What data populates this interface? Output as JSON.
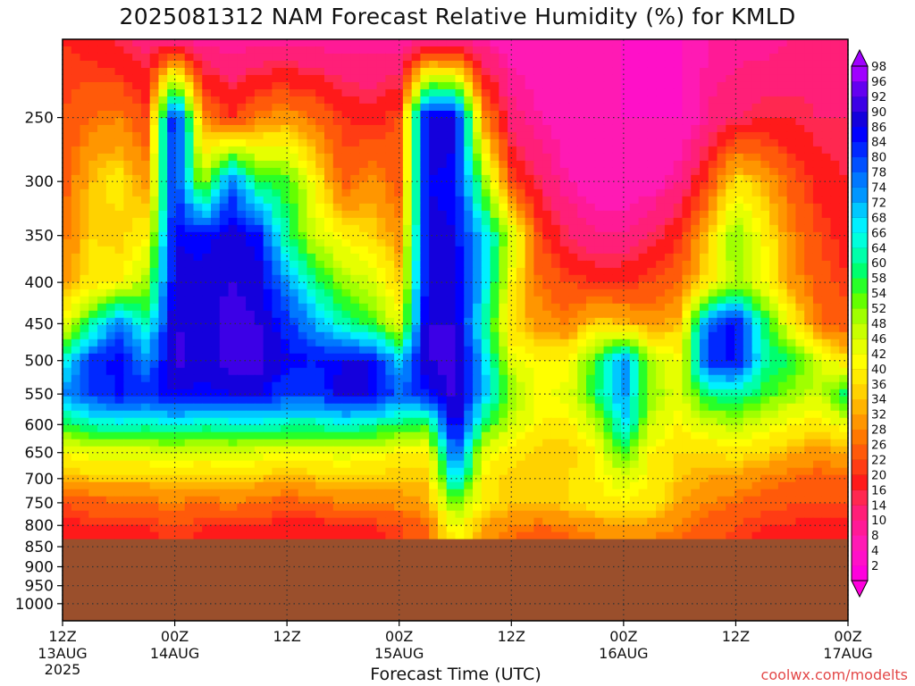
{
  "chart_data": {
    "type": "heatmap",
    "title": "2025081312 NAM Forecast Relative Humidity (%) for KMLD",
    "xlabel": "Forecast Time (UTC)",
    "ylabel": "",
    "y_scale": "log",
    "y_reversed": true,
    "ylim": [
      200,
      1050
    ],
    "y_ticks": [
      250,
      300,
      350,
      400,
      450,
      500,
      550,
      600,
      650,
      700,
      750,
      800,
      850,
      900,
      950,
      1000
    ],
    "x_ticks": [
      {
        "hour": 0,
        "line1": "12Z",
        "line2": "13AUG",
        "line3": "2025"
      },
      {
        "hour": 12,
        "line1": "00Z",
        "line2": "14AUG",
        "line3": ""
      },
      {
        "hour": 24,
        "line1": "12Z",
        "line2": "",
        "line3": ""
      },
      {
        "hour": 36,
        "line1": "00Z",
        "line2": "15AUG",
        "line3": ""
      },
      {
        "hour": 48,
        "line1": "12Z",
        "line2": "",
        "line3": ""
      },
      {
        "hour": 60,
        "line1": "00Z",
        "line2": "16AUG",
        "line3": ""
      },
      {
        "hour": 72,
        "line1": "12Z",
        "line2": "",
        "line3": ""
      },
      {
        "hour": 84,
        "line1": "00Z",
        "line2": "17AUG",
        "line3": ""
      }
    ],
    "ground_level_hpa": 832,
    "grid": true,
    "colorbar": {
      "position": "right",
      "levels": [
        2,
        4,
        8,
        10,
        14,
        16,
        20,
        22,
        26,
        28,
        32,
        34,
        36,
        40,
        42,
        46,
        48,
        52,
        54,
        58,
        60,
        64,
        66,
        68,
        72,
        74,
        78,
        80,
        84,
        86,
        90,
        92,
        96,
        98
      ],
      "colors": [
        "#ff00dd",
        "#ff10c8",
        "#ff1ab4",
        "#ff1a96",
        "#ff1f78",
        "#ff2850",
        "#ff1a1a",
        "#ff3c14",
        "#ff5a0a",
        "#ff7800",
        "#ff9600",
        "#ffb400",
        "#ffd200",
        "#ffeb00",
        "#ffff00",
        "#e6ff00",
        "#c8ff00",
        "#a0ff00",
        "#64ff00",
        "#28ff28",
        "#00ff6e",
        "#00ffaa",
        "#00ffdc",
        "#00f0ff",
        "#00c8ff",
        "#0096ff",
        "#0078ff",
        "#0050ff",
        "#0028ff",
        "#0000ff",
        "#1400dc",
        "#3c00e6",
        "#6400f0",
        "#a000ff"
      ]
    },
    "times_hours": [
      0,
      3,
      6,
      9,
      12,
      15,
      18,
      21,
      24,
      27,
      30,
      33,
      36,
      39,
      42,
      45,
      48,
      51,
      54,
      57,
      60,
      63,
      66,
      69,
      72,
      75,
      78,
      81,
      84
    ],
    "pressure_levels": [
      200,
      250,
      300,
      350,
      400,
      450,
      500,
      550,
      600,
      650,
      700,
      750,
      800,
      850
    ],
    "rh_percent": [
      [
        20,
        18,
        15,
        12,
        10,
        8,
        8,
        8,
        8,
        8,
        8,
        8,
        8,
        8,
        8,
        8,
        6,
        6,
        6,
        4,
        4,
        4,
        4,
        8,
        8,
        8,
        10,
        10,
        12
      ],
      [
        22,
        26,
        28,
        22,
        88,
        30,
        20,
        28,
        30,
        26,
        20,
        18,
        22,
        90,
        88,
        30,
        12,
        8,
        6,
        6,
        4,
        4,
        4,
        10,
        14,
        16,
        16,
        14,
        14
      ],
      [
        24,
        34,
        38,
        30,
        84,
        48,
        78,
        58,
        56,
        40,
        24,
        30,
        24,
        86,
        84,
        52,
        22,
        14,
        8,
        6,
        6,
        6,
        10,
        22,
        38,
        32,
        24,
        18,
        16
      ],
      [
        26,
        36,
        34,
        40,
        86,
        84,
        88,
        84,
        60,
        46,
        40,
        36,
        30,
        88,
        86,
        70,
        46,
        22,
        14,
        10,
        10,
        14,
        20,
        34,
        52,
        40,
        28,
        22,
        18
      ],
      [
        30,
        38,
        40,
        50,
        88,
        88,
        90,
        88,
        74,
        60,
        50,
        46,
        36,
        88,
        88,
        70,
        40,
        26,
        22,
        20,
        20,
        22,
        26,
        38,
        50,
        42,
        30,
        24,
        20
      ],
      [
        40,
        60,
        76,
        62,
        90,
        88,
        92,
        90,
        82,
        72,
        62,
        56,
        44,
        90,
        90,
        64,
        36,
        30,
        28,
        36,
        34,
        30,
        34,
        78,
        86,
        60,
        40,
        26,
        24
      ],
      [
        64,
        82,
        86,
        74,
        92,
        88,
        92,
        92,
        86,
        84,
        86,
        86,
        70,
        90,
        92,
        70,
        44,
        40,
        40,
        56,
        74,
        48,
        42,
        82,
        86,
        62,
        58,
        46,
        36
      ],
      [
        74,
        80,
        84,
        82,
        86,
        84,
        86,
        86,
        80,
        80,
        88,
        86,
        78,
        84,
        92,
        70,
        52,
        40,
        44,
        58,
        74,
        50,
        44,
        60,
        62,
        56,
        50,
        46,
        62
      ],
      [
        56,
        62,
        64,
        62,
        66,
        62,
        64,
        64,
        62,
        62,
        64,
        62,
        58,
        56,
        90,
        58,
        46,
        40,
        38,
        48,
        68,
        46,
        40,
        46,
        48,
        44,
        40,
        38,
        44
      ],
      [
        40,
        44,
        44,
        44,
        46,
        44,
        46,
        44,
        42,
        42,
        44,
        42,
        40,
        40,
        80,
        44,
        38,
        34,
        34,
        40,
        56,
        40,
        36,
        36,
        38,
        36,
        32,
        30,
        32
      ],
      [
        32,
        34,
        34,
        34,
        36,
        34,
        36,
        34,
        32,
        34,
        36,
        34,
        34,
        34,
        70,
        40,
        34,
        36,
        36,
        40,
        44,
        40,
        34,
        32,
        30,
        28,
        26,
        24,
        26
      ],
      [
        22,
        24,
        26,
        26,
        28,
        26,
        28,
        26,
        24,
        26,
        28,
        28,
        30,
        32,
        54,
        38,
        34,
        34,
        36,
        38,
        40,
        38,
        32,
        28,
        26,
        24,
        22,
        22,
        22
      ],
      [
        18,
        20,
        20,
        20,
        22,
        20,
        20,
        20,
        18,
        18,
        20,
        20,
        22,
        26,
        44,
        32,
        28,
        26,
        28,
        30,
        32,
        30,
        28,
        24,
        22,
        20,
        20,
        18,
        18
      ],
      [
        16,
        18,
        18,
        18,
        20,
        18,
        18,
        16,
        16,
        16,
        16,
        18,
        20,
        24,
        40,
        28,
        24,
        22,
        24,
        26,
        28,
        26,
        24,
        22,
        20,
        18,
        18,
        16,
        16
      ]
    ]
  },
  "credit": "coolwx.com/modelts",
  "colors": {
    "ground": "#9a4f2c",
    "frame": "#000000",
    "grid": "#333333"
  }
}
